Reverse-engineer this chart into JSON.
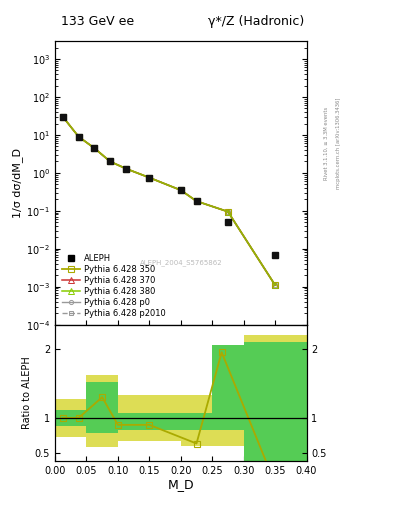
{
  "title_left": "133 GeV ee",
  "title_right": "γ*/Z (Hadronic)",
  "ylabel_main": "1/σ dσ/dM_D",
  "ylabel_ratio": "Ratio to ALEPH",
  "xlabel": "M_D",
  "watermark": "ALEPH_2004_S5765862",
  "right_label_top": "Rivet 3.1.10, ≥ 3.3M events",
  "right_label_bot": "mcplots.cern.ch [arXiv:1306.3436]",
  "aleph_x": [
    0.0125,
    0.0375,
    0.0625,
    0.0875,
    0.1125,
    0.15,
    0.2,
    0.225,
    0.275,
    0.35
  ],
  "aleph_y": [
    30.0,
    9.0,
    4.5,
    2.0,
    1.3,
    0.75,
    0.35,
    0.18,
    0.05,
    0.007
  ],
  "mc_x": [
    0.0125,
    0.0375,
    0.0625,
    0.0875,
    0.1125,
    0.15,
    0.2,
    0.225,
    0.275,
    0.35
  ],
  "mc_y_all": [
    30.0,
    9.0,
    4.5,
    2.0,
    1.3,
    0.75,
    0.35,
    0.18,
    0.095,
    0.0011
  ],
  "ratio_x": [
    0.0125,
    0.0375,
    0.075,
    0.1,
    0.15,
    0.225,
    0.265,
    0.35
  ],
  "ratio_y": [
    1.0,
    1.0,
    1.3,
    0.9,
    0.9,
    0.63,
    1.95,
    0.05
  ],
  "band_edges": [
    0.0,
    0.025,
    0.05,
    0.1,
    0.15,
    0.2,
    0.25,
    0.3,
    0.325,
    0.4
  ],
  "band_green_lo": [
    0.88,
    0.88,
    0.78,
    0.83,
    0.83,
    0.83,
    0.83,
    0.0,
    0.0,
    0.0
  ],
  "band_green_hi": [
    1.12,
    1.12,
    1.52,
    1.07,
    1.07,
    1.07,
    2.05,
    2.1,
    2.1,
    2.1
  ],
  "band_yellow_lo": [
    0.72,
    0.72,
    0.58,
    0.67,
    0.67,
    0.6,
    0.6,
    0.0,
    0.0,
    0.0
  ],
  "band_yellow_hi": [
    1.28,
    1.28,
    1.62,
    1.33,
    1.33,
    1.33,
    1.33,
    2.2,
    2.2,
    2.2
  ],
  "color_350": "#aaaa00",
  "color_370": "#cc3333",
  "color_380": "#88cc00",
  "color_p0": "#999999",
  "color_p2010": "#999999",
  "color_aleph": "#111111",
  "color_green_band": "#55cc55",
  "color_yellow_band": "#dddd55",
  "ylim_main": [
    0.0001,
    3000
  ],
  "ylim_ratio": [
    0.38,
    2.35
  ],
  "xlim": [
    0.0,
    0.4
  ]
}
